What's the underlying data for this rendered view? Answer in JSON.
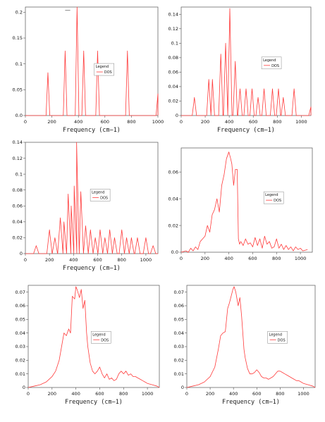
{
  "figure": {
    "top_mark": "—"
  },
  "chart_data": [
    {
      "type": "line",
      "xlabel": "Frequency (cm−1)",
      "ylabel": "",
      "xlim": [
        0,
        1000
      ],
      "ylim": [
        0,
        0.21
      ],
      "x_ticks": [
        0,
        200,
        400,
        600,
        800,
        1000
      ],
      "y_ticks": [
        0.0,
        0.05,
        0.1,
        0.15,
        0.2
      ],
      "y_tick_labels": [
        "0.0",
        "0.05",
        "0.1",
        "0.15",
        "0.2"
      ],
      "legend": {
        "title": "Legend",
        "entry": "DOS",
        "placement": "center"
      },
      "series": [
        {
          "name": "DOS",
          "color": "#ff3b3b",
          "peaks": [
            {
              "x": 170,
              "y": 0.083
            },
            {
              "x": 300,
              "y": 0.125
            },
            {
              "x": 390,
              "y": 0.21
            },
            {
              "x": 440,
              "y": 0.125
            },
            {
              "x": 545,
              "y": 0.125
            },
            {
              "x": 770,
              "y": 0.125
            },
            {
              "x": 1000,
              "y": 0.042
            }
          ],
          "width": 14
        }
      ]
    },
    {
      "type": "line",
      "xlabel": "Frequency (cm−1)",
      "ylabel": "",
      "xlim": [
        0,
        1080
      ],
      "ylim": [
        0,
        0.15
      ],
      "x_ticks": [
        0,
        200,
        400,
        600,
        800,
        1000
      ],
      "y_ticks": [
        0,
        0.02,
        0.04,
        0.06,
        0.08,
        0.1,
        0.12,
        0.14
      ],
      "y_tick_labels": [
        "0",
        "0.02",
        "0.04",
        "0.06",
        "0.08",
        "0.1",
        "0.12",
        "0.14"
      ],
      "legend": {
        "title": "Legend",
        "entry": "DOS",
        "placement": "center-right"
      },
      "series": [
        {
          "name": "DOS",
          "color": "#ff3b3b",
          "peaks": [
            {
              "x": 110,
              "y": 0.025
            },
            {
              "x": 230,
              "y": 0.05
            },
            {
              "x": 260,
              "y": 0.05
            },
            {
              "x": 330,
              "y": 0.085
            },
            {
              "x": 370,
              "y": 0.1
            },
            {
              "x": 405,
              "y": 0.148
            },
            {
              "x": 450,
              "y": 0.075
            },
            {
              "x": 490,
              "y": 0.037
            },
            {
              "x": 540,
              "y": 0.037
            },
            {
              "x": 590,
              "y": 0.037
            },
            {
              "x": 640,
              "y": 0.025
            },
            {
              "x": 690,
              "y": 0.037
            },
            {
              "x": 760,
              "y": 0.037
            },
            {
              "x": 810,
              "y": 0.037
            },
            {
              "x": 850,
              "y": 0.025
            },
            {
              "x": 940,
              "y": 0.037
            },
            {
              "x": 1080,
              "y": 0.012
            }
          ],
          "width": 18
        }
      ]
    },
    {
      "type": "line",
      "xlabel": "Frequency (cm−1)",
      "ylabel": "",
      "xlim": [
        0,
        1100
      ],
      "ylim": [
        0,
        0.14
      ],
      "x_ticks": [
        0,
        200,
        400,
        600,
        800,
        1000
      ],
      "y_ticks": [
        0,
        0.02,
        0.04,
        0.06,
        0.08,
        0.1,
        0.12,
        0.14
      ],
      "y_tick_labels": [
        "0",
        "0.02",
        "0.04",
        "0.06",
        "0.08",
        "0.1",
        "0.12",
        "0.14"
      ],
      "legend": {
        "title": "Legend",
        "entry": "DOS",
        "placement": "center"
      },
      "series": [
        {
          "name": "DOS",
          "color": "#ff3b3b",
          "peaks": [
            {
              "x": 90,
              "y": 0.01
            },
            {
              "x": 200,
              "y": 0.03
            },
            {
              "x": 245,
              "y": 0.02
            },
            {
              "x": 290,
              "y": 0.045
            },
            {
              "x": 320,
              "y": 0.04
            },
            {
              "x": 355,
              "y": 0.075
            },
            {
              "x": 380,
              "y": 0.06
            },
            {
              "x": 405,
              "y": 0.085
            },
            {
              "x": 425,
              "y": 0.14
            },
            {
              "x": 460,
              "y": 0.078
            },
            {
              "x": 500,
              "y": 0.035
            },
            {
              "x": 540,
              "y": 0.03
            },
            {
              "x": 580,
              "y": 0.02
            },
            {
              "x": 620,
              "y": 0.03
            },
            {
              "x": 660,
              "y": 0.02
            },
            {
              "x": 700,
              "y": 0.03
            },
            {
              "x": 740,
              "y": 0.02
            },
            {
              "x": 800,
              "y": 0.03
            },
            {
              "x": 840,
              "y": 0.02
            },
            {
              "x": 880,
              "y": 0.02
            },
            {
              "x": 930,
              "y": 0.02
            },
            {
              "x": 1000,
              "y": 0.02
            },
            {
              "x": 1060,
              "y": 0.01
            }
          ],
          "width": 22
        }
      ]
    },
    {
      "type": "line",
      "xlabel": "",
      "ylabel": "",
      "xlim": [
        0,
        1100
      ],
      "ylim": [
        0,
        0.078
      ],
      "x_ticks": [
        0,
        200,
        400,
        600,
        800,
        1000
      ],
      "y_ticks": [
        0,
        0.02,
        0.04,
        0.06
      ],
      "y_tick_labels": [
        "0.0",
        "0.02",
        "0.04",
        "0.06"
      ],
      "legend": {
        "title": "Legend",
        "entry": "DOS",
        "placement": "center-right"
      },
      "series": [
        {
          "name": "DOS",
          "color": "#ff3b3b",
          "x": [
            0,
            40,
            60,
            80,
            100,
            120,
            140,
            160,
            180,
            200,
            220,
            240,
            260,
            280,
            300,
            320,
            340,
            360,
            380,
            400,
            415,
            425,
            440,
            455,
            470,
            480,
            490,
            500,
            520,
            540,
            560,
            580,
            600,
            620,
            640,
            660,
            680,
            700,
            720,
            740,
            760,
            780,
            800,
            820,
            840,
            860,
            880,
            900,
            920,
            940,
            960,
            980,
            1000,
            1020,
            1060
          ],
          "y": [
            0,
            0.001,
            0,
            0.003,
            0.001,
            0.004,
            0.002,
            0.008,
            0.01,
            0.012,
            0.02,
            0.015,
            0.028,
            0.032,
            0.04,
            0.03,
            0.05,
            0.058,
            0.07,
            0.075,
            0.07,
            0.066,
            0.05,
            0.062,
            0.062,
            0.01,
            0.006,
            0.008,
            0.005,
            0.01,
            0.006,
            0.007,
            0.004,
            0.011,
            0.005,
            0.01,
            0.003,
            0.012,
            0.006,
            0.008,
            0.003,
            0.004,
            0.01,
            0.003,
            0.006,
            0.002,
            0.005,
            0.002,
            0.004,
            0.001,
            0.004,
            0.002,
            0.003,
            0.001,
            0.002
          ]
        }
      ]
    },
    {
      "type": "line",
      "xlabel": "Frequency (cm−1)",
      "ylabel": "",
      "xlim": [
        0,
        1100
      ],
      "ylim": [
        0,
        0.075
      ],
      "x_ticks": [
        0,
        200,
        400,
        600,
        800,
        1000
      ],
      "y_ticks": [
        0,
        0.01,
        0.02,
        0.03,
        0.04,
        0.05,
        0.06,
        0.07
      ],
      "y_tick_labels": [
        "0",
        "0.01",
        "0.02",
        "0.03",
        "0.04",
        "0.05",
        "0.06",
        "0.07"
      ],
      "legend": {
        "title": "Legend",
        "entry": "DOS",
        "placement": "center"
      },
      "series": [
        {
          "name": "DOS",
          "color": "#ff3b3b",
          "x": [
            0,
            50,
            100,
            150,
            200,
            230,
            260,
            280,
            300,
            320,
            340,
            355,
            370,
            390,
            400,
            410,
            430,
            445,
            460,
            475,
            490,
            500,
            520,
            540,
            560,
            580,
            600,
            620,
            640,
            660,
            680,
            700,
            720,
            740,
            760,
            780,
            800,
            820,
            840,
            860,
            880,
            900,
            920,
            940,
            960,
            980,
            1000,
            1040,
            1080,
            1100
          ],
          "y": [
            0,
            0.001,
            0.002,
            0.004,
            0.008,
            0.012,
            0.02,
            0.03,
            0.04,
            0.038,
            0.043,
            0.04,
            0.067,
            0.065,
            0.074,
            0.072,
            0.066,
            0.072,
            0.058,
            0.064,
            0.04,
            0.03,
            0.018,
            0.012,
            0.01,
            0.012,
            0.015,
            0.01,
            0.007,
            0.01,
            0.006,
            0.007,
            0.005,
            0.006,
            0.01,
            0.012,
            0.01,
            0.012,
            0.009,
            0.01,
            0.008,
            0.008,
            0.007,
            0.006,
            0.005,
            0.004,
            0.003,
            0.002,
            0.001,
            0
          ]
        }
      ]
    },
    {
      "type": "line",
      "xlabel": "Frequency (cm−1)",
      "ylabel": "",
      "xlim": [
        0,
        1100
      ],
      "ylim": [
        0,
        0.075
      ],
      "x_ticks": [
        0,
        200,
        400,
        600,
        800,
        1000
      ],
      "y_ticks": [
        0,
        0.01,
        0.02,
        0.03,
        0.04,
        0.05,
        0.06,
        0.07
      ],
      "y_tick_labels": [
        "0",
        "0.01",
        "0.02",
        "0.03",
        "0.04",
        "0.05",
        "0.06",
        "0.07"
      ],
      "legend": {
        "title": "Legend",
        "entry": "DOS",
        "placement": "center-right"
      },
      "series": [
        {
          "name": "DOS",
          "color": "#ff3b3b",
          "x": [
            0,
            50,
            100,
            150,
            200,
            240,
            270,
            290,
            310,
            330,
            350,
            365,
            380,
            395,
            405,
            420,
            440,
            455,
            470,
            480,
            490,
            500,
            520,
            540,
            560,
            580,
            600,
            620,
            640,
            660,
            680,
            700,
            720,
            740,
            760,
            780,
            800,
            820,
            840,
            860,
            880,
            900,
            920,
            940,
            960,
            980,
            1000,
            1040,
            1080,
            1100
          ],
          "y": [
            0,
            0.001,
            0.002,
            0.004,
            0.008,
            0.015,
            0.028,
            0.038,
            0.04,
            0.041,
            0.058,
            0.062,
            0.067,
            0.072,
            0.074,
            0.07,
            0.06,
            0.066,
            0.052,
            0.04,
            0.028,
            0.022,
            0.014,
            0.01,
            0.01,
            0.011,
            0.013,
            0.011,
            0.008,
            0.007,
            0.007,
            0.006,
            0.007,
            0.008,
            0.01,
            0.012,
            0.012,
            0.011,
            0.01,
            0.009,
            0.008,
            0.007,
            0.006,
            0.005,
            0.005,
            0.004,
            0.003,
            0.002,
            0.001,
            0
          ]
        }
      ]
    }
  ]
}
